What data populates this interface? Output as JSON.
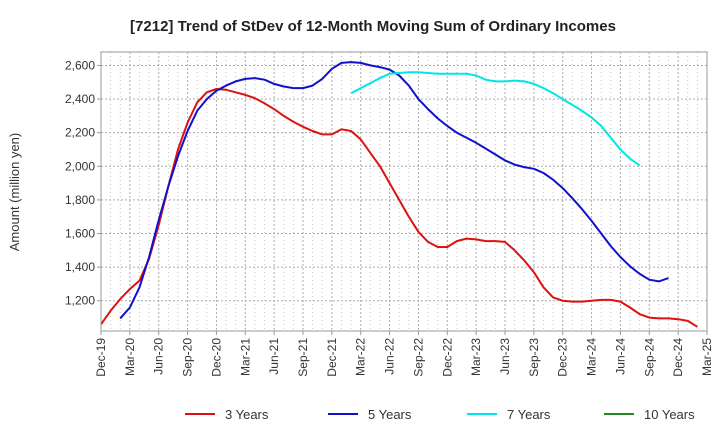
{
  "chart_data": {
    "type": "line",
    "title": "[7212]  Trend of StDev of 12-Month Moving Sum of Ordinary Incomes",
    "xlabel": "",
    "ylabel": "Amount (million yen)",
    "ylim": [
      1020,
      2680
    ],
    "yticks": [
      1200,
      1400,
      1600,
      1800,
      2000,
      2200,
      2400,
      2600
    ],
    "ytick_labels": [
      "1,200",
      "1,400",
      "1,600",
      "1,800",
      "2,000",
      "2,200",
      "2,400",
      "2,600"
    ],
    "xtick_labels": [
      "Dec-19",
      "Mar-20",
      "Jun-20",
      "Sep-20",
      "Dec-20",
      "Mar-21",
      "Jun-21",
      "Sep-21",
      "Dec-21",
      "Mar-22",
      "Jun-22",
      "Sep-22",
      "Dec-22",
      "Mar-23",
      "Jun-23",
      "Sep-23",
      "Dec-23",
      "Mar-24",
      "Jun-24",
      "Sep-24",
      "Dec-24",
      "Mar-25"
    ],
    "grid": true,
    "legend_position": "bottom",
    "series": [
      {
        "name": "3 Years",
        "color": "#dd1111",
        "start_index": 0,
        "values": [
          1060,
          1140,
          1210,
          1270,
          1320,
          1450,
          1650,
          1880,
          2100,
          2260,
          2380,
          2440,
          2460,
          2455,
          2440,
          2425,
          2405,
          2375,
          2340,
          2300,
          2265,
          2235,
          2210,
          2190,
          2190,
          2220,
          2210,
          2160,
          2080,
          2000,
          1900,
          1800,
          1700,
          1610,
          1550,
          1520,
          1520,
          1555,
          1570,
          1565,
          1555,
          1555,
          1550,
          1500,
          1440,
          1370,
          1280,
          1220,
          1200,
          1195,
          1195,
          1200,
          1205,
          1205,
          1195,
          1160,
          1120,
          1100,
          1095,
          1095,
          1090,
          1080,
          1045
        ]
      },
      {
        "name": "5 Years",
        "color": "#1111cc",
        "start_index": 2,
        "values": [
          1095,
          1160,
          1280,
          1460,
          1680,
          1880,
          2060,
          2210,
          2330,
          2400,
          2450,
          2480,
          2505,
          2520,
          2525,
          2515,
          2490,
          2475,
          2465,
          2465,
          2480,
          2520,
          2580,
          2615,
          2620,
          2615,
          2600,
          2590,
          2575,
          2540,
          2480,
          2400,
          2340,
          2285,
          2240,
          2200,
          2170,
          2140,
          2105,
          2070,
          2035,
          2010,
          1995,
          1985,
          1960,
          1920,
          1870,
          1810,
          1745,
          1675,
          1600,
          1525,
          1460,
          1405,
          1360,
          1325,
          1315,
          1335
        ]
      },
      {
        "name": "7 Years",
        "color": "#00e5e5",
        "start_index": 26,
        "values": [
          2435,
          2465,
          2495,
          2525,
          2550,
          2555,
          2560,
          2560,
          2555,
          2550,
          2550,
          2550,
          2550,
          2540,
          2515,
          2505,
          2505,
          2510,
          2505,
          2490,
          2465,
          2435,
          2400,
          2365,
          2330,
          2290,
          2240,
          2170,
          2100,
          2045,
          2005
        ]
      },
      {
        "name": "10 Years",
        "color": "#228822",
        "start_index": 0,
        "values": []
      }
    ]
  }
}
